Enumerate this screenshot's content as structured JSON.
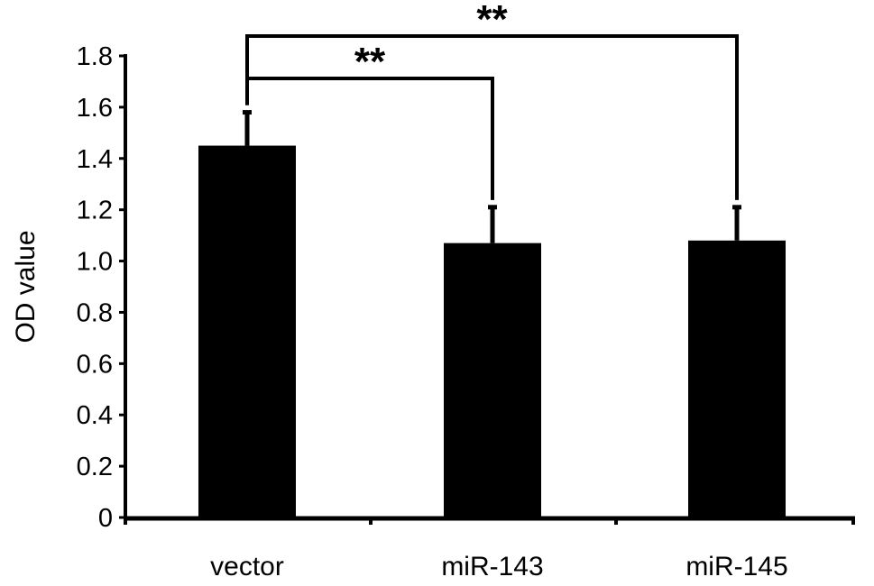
{
  "chart_data": {
    "type": "bar",
    "title": "",
    "xlabel": "",
    "ylabel": "OD value",
    "ylim": [
      0,
      1.8
    ],
    "y_ticks": [
      "0",
      "0.2",
      "0.4",
      "0.6",
      "0.8",
      "1.0",
      "1.2",
      "1.4",
      "1.6",
      "1.8"
    ],
    "categories": [
      "vector",
      "miR-143",
      "miR-145"
    ],
    "values": [
      1.45,
      1.07,
      1.08
    ],
    "error_bars": [
      0.13,
      0.14,
      0.13
    ],
    "bar_color": "#000000",
    "grid": false,
    "legend": "none",
    "significance": [
      {
        "from": "vector",
        "to": "miR-143",
        "label": "**"
      },
      {
        "from": "vector",
        "to": "miR-145",
        "label": "**"
      }
    ]
  }
}
